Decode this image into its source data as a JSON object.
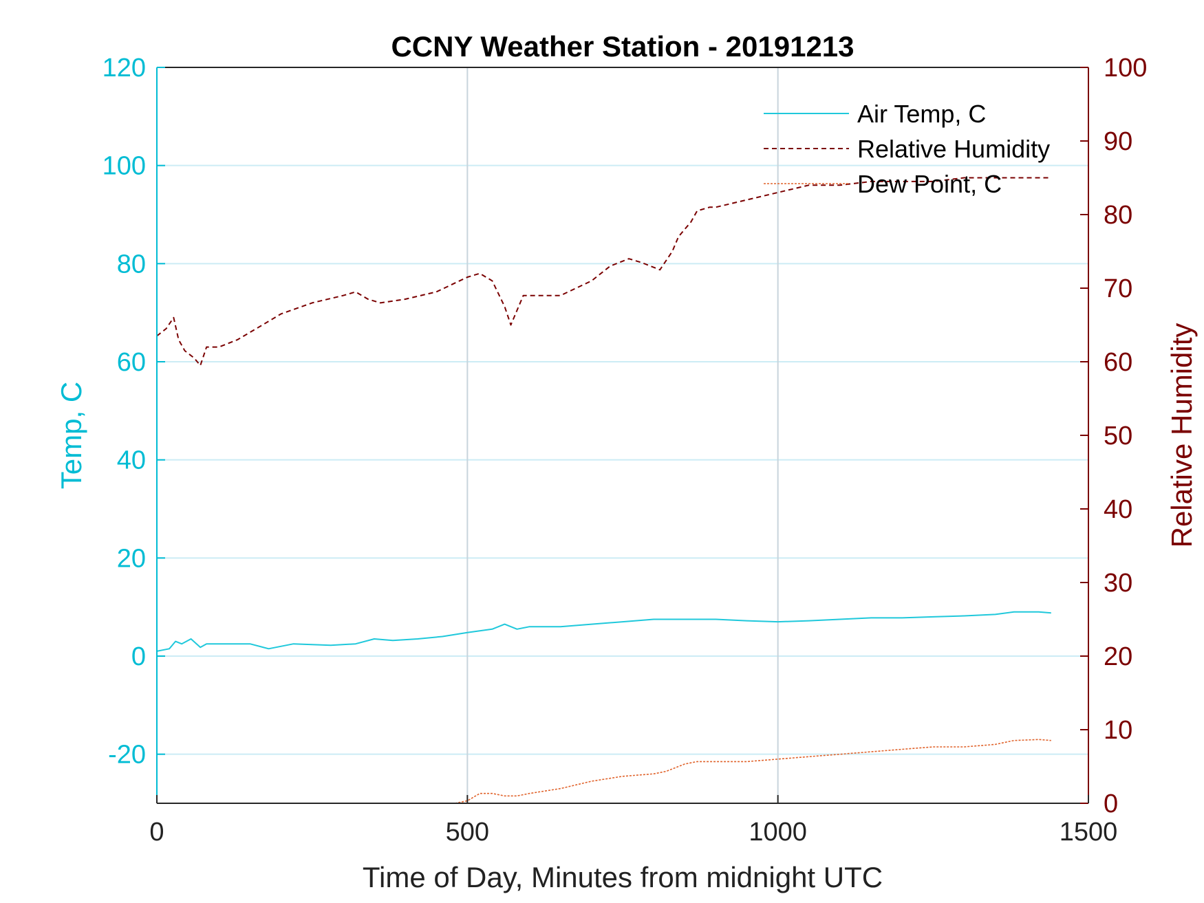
{
  "chart_data": {
    "type": "line",
    "title": "CCNY Weather Station - 20191213",
    "xlabel": "Time of Day, Minutes from midnight UTC",
    "ylabel_left": "Temp, C",
    "ylabel_right": "Relative Humidity",
    "xlim": [
      0,
      1500
    ],
    "ylim_left": [
      -30,
      120
    ],
    "ylim_right": [
      0,
      100
    ],
    "x_ticks": [
      "0",
      "500",
      "1000",
      "1500"
    ],
    "y_ticks_left": [
      "-20",
      "0",
      "20",
      "40",
      "60",
      "80",
      "100",
      "120"
    ],
    "y_ticks_right": [
      "0",
      "10",
      "20",
      "30",
      "40",
      "50",
      "60",
      "70",
      "80",
      "90",
      "100"
    ],
    "grid": true,
    "legend_position": "top-right",
    "colors": {
      "air_temp": "#1fc8db",
      "relative_humidity": "#7a0000",
      "dew_point": "#e0622a",
      "left_axis": "#00bcd4",
      "right_axis": "#7a0000",
      "grid": "#ccecf5",
      "vgrid": "#c8d4dc"
    },
    "series": [
      {
        "name": "Air Temp, C",
        "axis": "left",
        "style": "solid",
        "x": [
          0,
          20,
          30,
          40,
          55,
          70,
          80,
          100,
          150,
          180,
          220,
          280,
          320,
          350,
          380,
          420,
          460,
          500,
          540,
          560,
          580,
          600,
          650,
          700,
          750,
          800,
          850,
          900,
          950,
          1000,
          1050,
          1100,
          1150,
          1200,
          1250,
          1300,
          1350,
          1380,
          1420,
          1440
        ],
        "y": [
          1,
          1.5,
          3,
          2.5,
          3.5,
          1.8,
          2.5,
          2.5,
          2.5,
          1.5,
          2.5,
          2.2,
          2.5,
          3.5,
          3.2,
          3.5,
          4.0,
          4.8,
          5.5,
          6.5,
          5.5,
          6.0,
          6.0,
          6.5,
          7.0,
          7.5,
          7.5,
          7.5,
          7.2,
          7.0,
          7.2,
          7.5,
          7.8,
          7.8,
          8.0,
          8.2,
          8.5,
          9.0,
          9.0,
          8.8
        ]
      },
      {
        "name": "Relative Humidity",
        "axis": "right",
        "style": "dashed",
        "x": [
          0,
          15,
          27,
          35,
          45,
          60,
          70,
          80,
          100,
          130,
          170,
          200,
          250,
          300,
          320,
          340,
          360,
          400,
          450,
          500,
          520,
          540,
          560,
          570,
          590,
          620,
          650,
          700,
          730,
          760,
          780,
          810,
          830,
          840,
          860,
          870,
          890,
          900,
          950,
          1000,
          1050,
          1100,
          1150,
          1200,
          1250,
          1300,
          1350,
          1400,
          1440
        ],
        "y": [
          63.5,
          64.5,
          66,
          63,
          61.5,
          60.5,
          59.5,
          62,
          62,
          63,
          65,
          66.5,
          68,
          69,
          69.5,
          68.5,
          68,
          68.5,
          69.5,
          71.5,
          72,
          71,
          67.5,
          65,
          69,
          69,
          69,
          71,
          73,
          74,
          73.5,
          72.5,
          75,
          77,
          79,
          80.5,
          81,
          81,
          82,
          83,
          84,
          84,
          84.5,
          84.5,
          84.5,
          85,
          85,
          85,
          85
        ]
      },
      {
        "name": "Dew Point, C",
        "axis": "left",
        "style": "dotted",
        "x": [
          480,
          500,
          520,
          540,
          560,
          580,
          600,
          650,
          700,
          750,
          800,
          820,
          850,
          870,
          900,
          950,
          1000,
          1050,
          1100,
          1150,
          1200,
          1250,
          1300,
          1350,
          1380,
          1420,
          1440
        ],
        "y": [
          -30,
          -29.5,
          -28,
          -28,
          -28.5,
          -28.5,
          -28,
          -27,
          -25.5,
          -24.5,
          -24,
          -23.5,
          -22,
          -21.5,
          -21.5,
          -21.5,
          -21,
          -20.5,
          -20,
          -19.5,
          -19,
          -18.5,
          -18.5,
          -18,
          -17.2,
          -17,
          -17.2
        ]
      }
    ]
  }
}
